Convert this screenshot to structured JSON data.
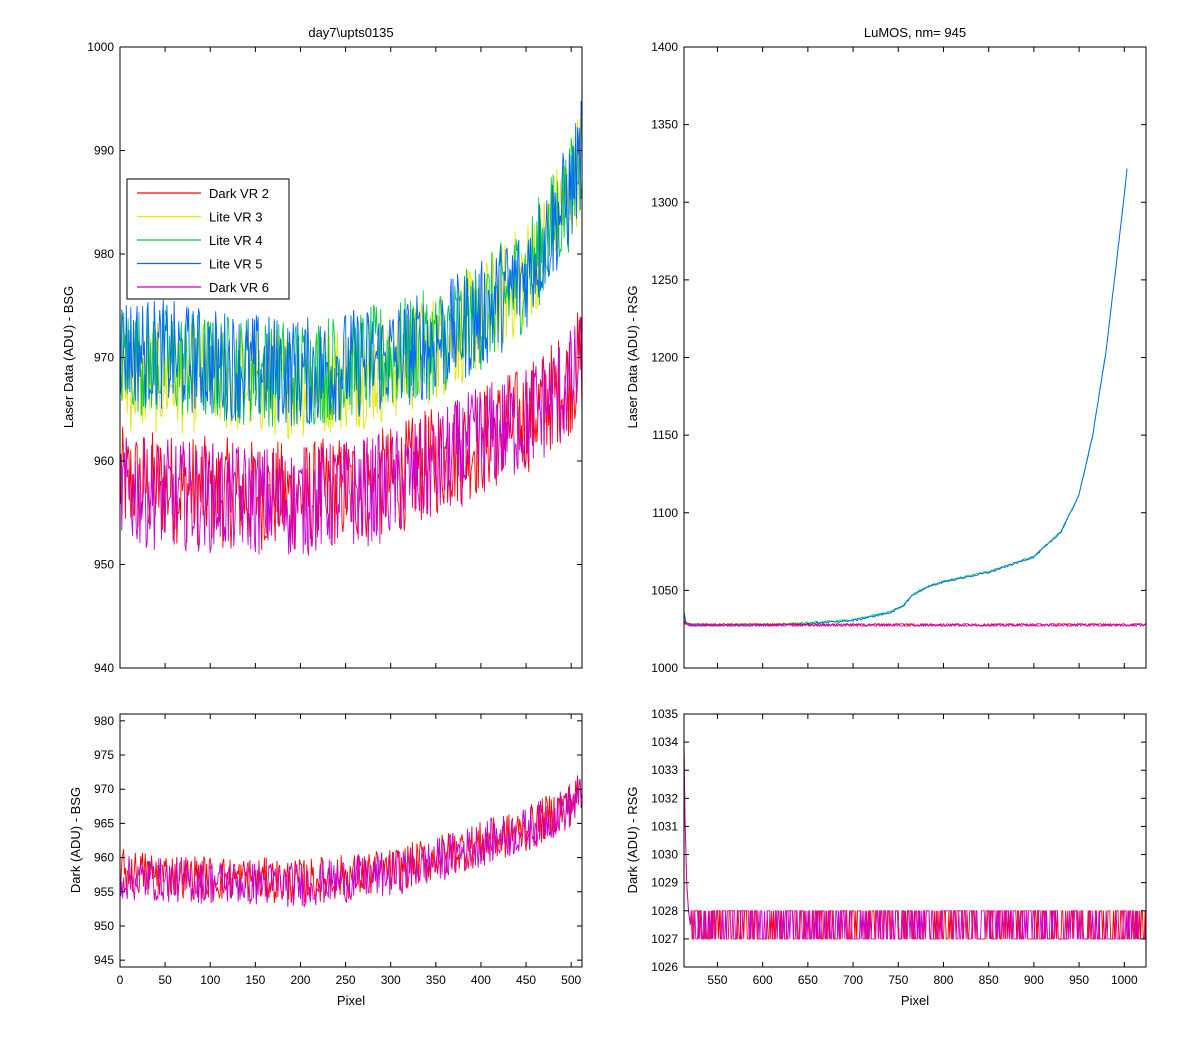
{
  "chart_data": [
    {
      "type": "line",
      "title": "day7\\upts0135",
      "xlabel": "",
      "ylabel": "Laser Data (ADU) - BSG",
      "xlim": [
        0,
        512
      ],
      "ylim": [
        940,
        1000
      ],
      "xticks": [
        0,
        50,
        100,
        150,
        200,
        250,
        300,
        350,
        400,
        450,
        500
      ],
      "yticks": [
        940,
        950,
        960,
        970,
        980,
        990,
        1000
      ],
      "xtick_labels_visible": false,
      "legend": {
        "placement": "upper-left",
        "entries": [
          "Dark VR 2",
          "Lite VR 3",
          "Lite VR 4",
          "Lite VR 5",
          "Dark VR 6"
        ]
      },
      "series": [
        {
          "name": "Dark VR 2",
          "color": "#ff0000",
          "x": [
            0,
            100,
            200,
            300,
            350,
            400,
            450,
            500,
            512
          ],
          "y": [
            958,
            957,
            956.5,
            958,
            960,
            962,
            964,
            968,
            970
          ]
        },
        {
          "name": "Lite VR 3",
          "color": "#e6e600",
          "x": [
            0,
            100,
            200,
            300,
            350,
            400,
            450,
            500,
            512
          ],
          "y": [
            968,
            968,
            967.5,
            969,
            971,
            974,
            978,
            986,
            990
          ]
        },
        {
          "name": "Lite VR 4",
          "color": "#00cc44",
          "x": [
            0,
            100,
            200,
            300,
            350,
            400,
            450,
            500,
            512
          ],
          "y": [
            970,
            969,
            968.5,
            970,
            971.5,
            974,
            978,
            986,
            990
          ]
        },
        {
          "name": "Lite VR 5",
          "color": "#0066ff",
          "x": [
            0,
            100,
            200,
            300,
            350,
            400,
            450,
            500,
            512
          ],
          "y": [
            971,
            969.5,
            968.5,
            970,
            971.5,
            974,
            978,
            986,
            990
          ]
        },
        {
          "name": "Dark VR 6",
          "color": "#cc00cc",
          "x": [
            0,
            100,
            200,
            300,
            350,
            400,
            450,
            500,
            512
          ],
          "y": [
            957,
            956.5,
            956,
            957.5,
            959.5,
            962,
            964,
            967.5,
            969
          ]
        }
      ]
    },
    {
      "type": "line",
      "title": "LuMOS, nm= 945",
      "xlabel": "",
      "ylabel": "Laser Data (ADU) - RSG",
      "xlim": [
        513,
        1024
      ],
      "ylim": [
        1000,
        1400
      ],
      "xticks": [
        550,
        600,
        650,
        700,
        750,
        800,
        850,
        900,
        950,
        1000
      ],
      "yticks": [
        1000,
        1050,
        1100,
        1150,
        1200,
        1250,
        1300,
        1350,
        1400
      ],
      "xtick_labels_visible": false,
      "series": [
        {
          "color": "#00cc44",
          "x": [
            513,
            515,
            520,
            600,
            650,
            700,
            740,
            755,
            765,
            780,
            800,
            850,
            900,
            930,
            950,
            965,
            980,
            990,
            1000,
            1003
          ],
          "y": [
            1036,
            1030,
            1028,
            1028,
            1029,
            1031,
            1036,
            1040,
            1047,
            1052,
            1056,
            1062,
            1072,
            1088,
            1112,
            1150,
            1205,
            1255,
            1305,
            1322
          ]
        },
        {
          "color": "#0066ff",
          "x": [
            513,
            515,
            520,
            600,
            650,
            700,
            740,
            755,
            765,
            780,
            800,
            850,
            900,
            930,
            950,
            965,
            980,
            990,
            1000,
            1003
          ],
          "y": [
            1035,
            1029,
            1027.5,
            1027.5,
            1028.5,
            1030.5,
            1035.5,
            1039.5,
            1046.5,
            1051.5,
            1055.5,
            1061.5,
            1071.5,
            1087.5,
            1111.5,
            1149.5,
            1204.5,
            1254.5,
            1304.5,
            1321.5
          ]
        },
        {
          "color": "#ff0000",
          "x": [
            513,
            515,
            520,
            1024
          ],
          "y": [
            1030,
            1028,
            1027.5,
            1027.5
          ]
        },
        {
          "color": "#cc00cc",
          "x": [
            513,
            515,
            520,
            1024
          ],
          "y": [
            1030,
            1028,
            1027,
            1027
          ]
        }
      ]
    },
    {
      "type": "line",
      "title": "",
      "xlabel": "Pixel",
      "ylabel": "Dark (ADU) - BSG",
      "xlim": [
        0,
        512
      ],
      "ylim": [
        944,
        981
      ],
      "xticks": [
        0,
        50,
        100,
        150,
        200,
        250,
        300,
        350,
        400,
        450,
        500
      ],
      "yticks": [
        945,
        950,
        955,
        960,
        965,
        970,
        975,
        980
      ],
      "series": [
        {
          "color": "#ff0000",
          "x": [
            0,
            100,
            200,
            300,
            350,
            400,
            450,
            500,
            512
          ],
          "y": [
            958,
            957,
            956.5,
            958,
            960,
            962,
            964,
            968,
            970
          ]
        },
        {
          "color": "#cc00cc",
          "x": [
            0,
            100,
            200,
            300,
            350,
            400,
            450,
            500,
            512
          ],
          "y": [
            957,
            956.5,
            956,
            957.5,
            959.5,
            962,
            964,
            967.5,
            969
          ]
        }
      ]
    },
    {
      "type": "line",
      "title": "",
      "xlabel": "Pixel",
      "ylabel": "Dark (ADU) - RSG",
      "xlim": [
        513,
        1024
      ],
      "ylim": [
        1026,
        1035
      ],
      "xticks": [
        550,
        600,
        650,
        700,
        750,
        800,
        850,
        900,
        950,
        1000
      ],
      "yticks": [
        1026,
        1027,
        1028,
        1029,
        1030,
        1031,
        1032,
        1033,
        1034,
        1035
      ],
      "series": [
        {
          "color": "#ff0000",
          "x": [
            513,
            514,
            516,
            518,
            520,
            1024
          ],
          "y": [
            1034,
            1031.5,
            1029,
            1028,
            1027.5,
            1027.5
          ]
        },
        {
          "color": "#cc00cc",
          "x": [
            513,
            514,
            516,
            518,
            520,
            1024
          ],
          "y": [
            1034,
            1031.5,
            1029,
            1028,
            1027.5,
            1027.5
          ]
        }
      ]
    }
  ]
}
